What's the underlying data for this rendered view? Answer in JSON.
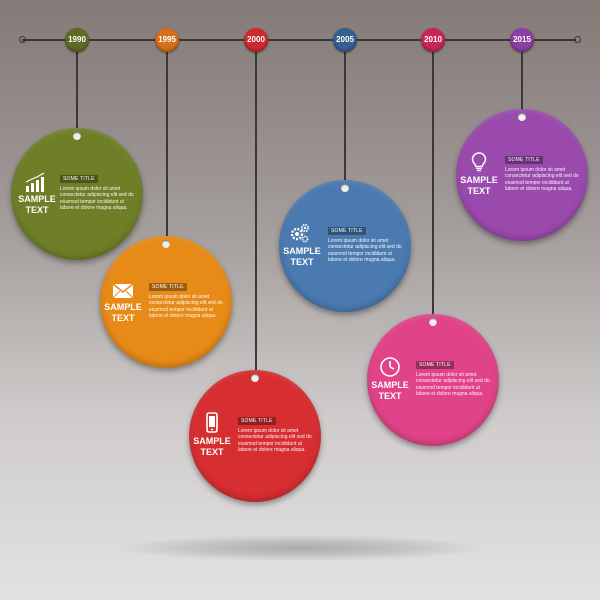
{
  "timeline": {
    "years": [
      "1990",
      "1995",
      "2000",
      "2005",
      "2010",
      "2015"
    ]
  },
  "colors": {
    "olive": "#6e7f28",
    "orange": "#e78a18",
    "red": "#d62e31",
    "blue": "#4a7ab0",
    "pink": "#e04388",
    "purple": "#9a49ad",
    "year_1990": "#5f6b25",
    "year_1995": "#d46f1a",
    "year_2000": "#cc2a2e",
    "year_2005": "#345f91",
    "year_2010": "#c6265a",
    "year_2015": "#8c3ea2"
  },
  "items": [
    {
      "year": "1990",
      "icon": "bar-chart-icon",
      "sample": "SAMPLE TEXT",
      "title": "SOME TITLE",
      "body": "Lorem ipsum dolor sit amet consectetur adipiscing elit sed do eiusmod tempor incididunt ut labore et dolore magna aliqua."
    },
    {
      "year": "1995",
      "icon": "envelope-icon",
      "sample": "SAMPLE TEXT",
      "title": "SOME TITLE",
      "body": "Lorem ipsum dolor sit amet consectetur adipiscing elit sed do eiusmod tempor incididunt ut labore et dolore magna aliqua."
    },
    {
      "year": "2000",
      "icon": "smartphone-icon",
      "sample": "SAMPLE TEXT",
      "title": "SOME TITLE",
      "body": "Lorem ipsum dolor sit amet consectetur adipiscing elit sed do eiusmod tempor incididunt ut labore et dolore magna aliqua."
    },
    {
      "year": "2005",
      "icon": "gears-icon",
      "sample": "SAMPLE TEXT",
      "title": "SOME TITLE",
      "body": "Lorem ipsum dolor sit amet consectetur adipiscing elit sed do eiusmod tempor incididunt ut labore et dolore magna aliqua."
    },
    {
      "year": "2010",
      "icon": "clock-icon",
      "sample": "SAMPLE TEXT",
      "title": "SOME TITLE",
      "body": "Lorem ipsum dolor sit amet consectetur adipiscing elit sed do eiusmod tempor incididunt ut labore et dolore magna aliqua."
    },
    {
      "year": "2015",
      "icon": "lightbulb-icon",
      "sample": "SAMPLE TEXT",
      "title": "SOME TITLE",
      "body": "Lorem ipsum dolor sit amet consectetur adipiscing elit sed do eiusmod tempor incididunt ut labore et dolore magna aliqua."
    }
  ]
}
